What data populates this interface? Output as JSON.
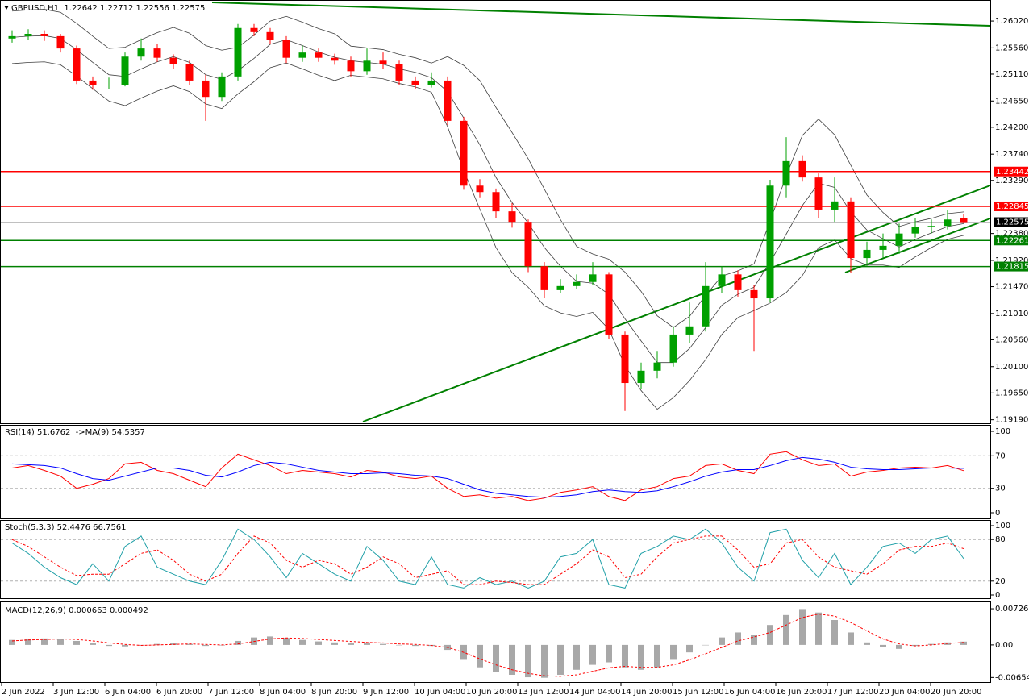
{
  "chart_data": [
    {
      "type": "candlestick",
      "title": "GBPUSD,H1  1.22642 1.22712 1.22556 1.22575",
      "up_color": "#00a000",
      "down_color": "#ff0000",
      "open": [
        1.2572,
        1.2576,
        1.258,
        1.2576,
        1.2555,
        1.25,
        1.2493,
        1.2493,
        1.2541,
        1.2555,
        1.2539,
        1.2528,
        1.25,
        1.2472,
        1.2507,
        1.259,
        1.2583,
        1.2569,
        1.2539,
        1.2548,
        1.2539,
        1.2534,
        1.2516,
        1.2534,
        1.2528,
        1.25,
        1.2493,
        1.25,
        1.2431,
        1.232,
        1.2309,
        1.2276,
        1.2258,
        1.2182,
        1.2141,
        1.2148,
        1.2155,
        1.2168,
        1.2065,
        1.1982,
        1.2003,
        1.2017,
        1.2065,
        1.2079,
        1.2148,
        1.2168,
        1.2141,
        1.2127,
        1.232,
        1.2362,
        1.2334,
        1.2279,
        1.2293,
        1.2196,
        1.221,
        1.2217,
        1.2238,
        1.2249,
        1.2251,
        1.22642
      ],
      "high": [
        1.2586,
        1.2588,
        1.2586,
        1.258,
        1.256,
        1.2507,
        1.2505,
        1.2548,
        1.2572,
        1.2562,
        1.2545,
        1.2534,
        1.251,
        1.2514,
        1.2597,
        1.2597,
        1.259,
        1.2576,
        1.256,
        1.2555,
        1.2546,
        1.2541,
        1.2555,
        1.2548,
        1.2534,
        1.2507,
        1.2514,
        1.2507,
        1.2438,
        1.2331,
        1.2315,
        1.229,
        1.2262,
        1.2189,
        1.216,
        1.2168,
        1.2189,
        1.2172,
        1.207,
        1.2017,
        1.2037,
        1.2079,
        1.212,
        1.2189,
        1.2182,
        1.2175,
        1.215,
        1.233,
        1.2403,
        1.2372,
        1.2341,
        1.2334,
        1.23,
        1.2224,
        1.2238,
        1.2255,
        1.2265,
        1.2262,
        1.2279,
        1.22712
      ],
      "low": [
        1.2565,
        1.257,
        1.2568,
        1.2548,
        1.2494,
        1.2484,
        1.2486,
        1.249,
        1.2534,
        1.2532,
        1.252,
        1.2493,
        1.2431,
        1.2465,
        1.25,
        1.2576,
        1.2562,
        1.253,
        1.2532,
        1.2532,
        1.2527,
        1.2507,
        1.251,
        1.252,
        1.2493,
        1.2486,
        1.2488,
        1.2424,
        1.2313,
        1.23,
        1.2265,
        1.2248,
        1.2172,
        1.2127,
        1.2136,
        1.2143,
        1.215,
        1.2058,
        1.1934,
        1.1972,
        1.199,
        1.201,
        1.205,
        1.207,
        1.2136,
        1.213,
        1.2037,
        1.212,
        1.23,
        1.2327,
        1.2265,
        1.2258,
        1.2171,
        1.2182,
        1.2196,
        1.2203,
        1.2231,
        1.2238,
        1.2245,
        1.22556
      ],
      "close": [
        1.2576,
        1.258,
        1.2576,
        1.2555,
        1.25,
        1.2493,
        1.2493,
        1.2541,
        1.2555,
        1.2539,
        1.2528,
        1.25,
        1.2472,
        1.2507,
        1.259,
        1.2583,
        1.2569,
        1.2539,
        1.2548,
        1.2539,
        1.2534,
        1.2516,
        1.2534,
        1.2528,
        1.25,
        1.2493,
        1.25,
        1.2431,
        1.232,
        1.2309,
        1.2276,
        1.2258,
        1.2182,
        1.2141,
        1.2148,
        1.2155,
        1.2168,
        1.2065,
        1.1982,
        1.2003,
        1.2017,
        1.2065,
        1.2079,
        1.2148,
        1.2168,
        1.2141,
        1.2127,
        1.232,
        1.2362,
        1.2334,
        1.2279,
        1.2293,
        1.2196,
        1.221,
        1.2217,
        1.2238,
        1.2249,
        1.2251,
        1.2262,
        1.22575
      ],
      "bands": {
        "color": "#404040",
        "upper": [
          1.2619,
          1.2621,
          1.2622,
          1.2617,
          1.2598,
          1.2576,
          1.2555,
          1.2557,
          1.257,
          1.2582,
          1.2591,
          1.2581,
          1.256,
          1.2552,
          1.2557,
          1.2578,
          1.2602,
          1.261,
          1.26,
          1.2589,
          1.258,
          1.2559,
          1.2556,
          1.2553,
          1.2545,
          1.2539,
          1.253,
          1.2541,
          1.2526,
          1.25,
          1.2454,
          1.2411,
          1.2366,
          1.2314,
          1.2262,
          1.2216,
          1.2203,
          1.2194,
          1.2172,
          1.2139,
          1.2097,
          1.2077,
          1.2096,
          1.2132,
          1.2165,
          1.2174,
          1.2186,
          1.2259,
          1.2337,
          1.2406,
          1.2434,
          1.2407,
          1.2355,
          1.2304,
          1.2274,
          1.225,
          1.2258,
          1.2264,
          1.2272,
          1.2275
        ],
        "middle": [
          1.2574,
          1.2576,
          1.2577,
          1.2572,
          1.2553,
          1.2531,
          1.251,
          1.2507,
          1.252,
          1.2532,
          1.2541,
          1.2531,
          1.251,
          1.2502,
          1.2517,
          1.2538,
          1.2562,
          1.257,
          1.256,
          1.2549,
          1.254,
          1.2534,
          1.2531,
          1.2528,
          1.252,
          1.2514,
          1.2505,
          1.2481,
          1.2436,
          1.239,
          1.2334,
          1.2291,
          1.2256,
          1.2214,
          1.2182,
          1.2156,
          1.2153,
          1.2134,
          1.2092,
          1.2054,
          1.2017,
          1.2017,
          1.2041,
          1.2077,
          1.2115,
          1.2134,
          1.2146,
          1.2189,
          1.2237,
          1.2286,
          1.2324,
          1.2317,
          1.2275,
          1.2244,
          1.2229,
          1.2215,
          1.2228,
          1.2239,
          1.225,
          1.2255
        ],
        "lower": [
          1.2529,
          1.2531,
          1.2532,
          1.2527,
          1.2508,
          1.2486,
          1.2465,
          1.2457,
          1.247,
          1.2482,
          1.2491,
          1.2481,
          1.246,
          1.2452,
          1.2477,
          1.2498,
          1.2522,
          1.253,
          1.252,
          1.2509,
          1.25,
          1.2509,
          1.2506,
          1.2503,
          1.2495,
          1.2489,
          1.248,
          1.2421,
          1.2346,
          1.228,
          1.2214,
          1.2171,
          1.2146,
          1.2114,
          1.2102,
          1.2096,
          1.2103,
          1.2074,
          1.2012,
          1.1969,
          1.1937,
          1.1957,
          1.1986,
          1.2022,
          1.2065,
          1.2094,
          1.2106,
          1.2119,
          1.2137,
          1.2166,
          1.2214,
          1.2227,
          1.2195,
          1.2184,
          1.2184,
          1.218,
          1.2198,
          1.2214,
          1.2228,
          1.2235
        ]
      },
      "ylim": [
        1.1913,
        1.2638
      ],
      "yticks": [
        {
          "value": 1.2602,
          "label": "1.26020"
        },
        {
          "value": 1.2556,
          "label": "1.25560"
        },
        {
          "value": 1.2511,
          "label": "1.25110"
        },
        {
          "value": 1.2465,
          "label": "1.24650"
        },
        {
          "value": 1.242,
          "label": "1.24200"
        },
        {
          "value": 1.2374,
          "label": "1.23740"
        },
        {
          "value": 1.2329,
          "label": "1.23290"
        },
        {
          "value": 1.2238,
          "label": "1.22380"
        },
        {
          "value": 1.2192,
          "label": "1.21920"
        },
        {
          "value": 1.2147,
          "label": "1.21470"
        },
        {
          "value": 1.2101,
          "label": "1.21010"
        },
        {
          "value": 1.2056,
          "label": "1.20560"
        },
        {
          "value": 1.201,
          "label": "1.20100"
        },
        {
          "value": 1.1965,
          "label": "1.19650"
        },
        {
          "value": 1.1919,
          "label": "1.19190"
        }
      ],
      "levels": [
        {
          "value": 1.23442,
          "color": "#ff0000"
        },
        {
          "value": 1.22845,
          "color": "#ff0000"
        },
        {
          "value": 1.22261,
          "color": "#008000"
        },
        {
          "value": 1.21815,
          "color": "#008000"
        }
      ],
      "current_price": {
        "value": 1.22575,
        "color": "#000000"
      },
      "time_labels": [
        "2 Jun 2022",
        "3 Jun 12:00",
        "6 Jun 04:00",
        "6 Jun 20:00",
        "7 Jun 12:00",
        "8 Jun 04:00",
        "8 Jun 20:00",
        "9 Jun 12:00",
        "10 Jun 04:00",
        "10 Jun 20:00",
        "13 Jun 12:00",
        "14 Jun 04:00",
        "14 Jun 20:00",
        "15 Jun 12:00",
        "16 Jun 04:00",
        "16 Jun 20:00",
        "17 Jun 12:00",
        "20 Jun 04:00",
        "20 Jun 20:00"
      ]
    },
    {
      "type": "line",
      "title": "RSI(14) 51.6762  ->MA(9) 54.5357",
      "ylim": [
        0,
        100
      ],
      "yticks": [
        100,
        70,
        30,
        0
      ],
      "levels": [
        70,
        30
      ],
      "series": [
        {
          "color": "#ff0000",
          "style": "solid",
          "values": [
            55,
            58,
            52,
            45,
            30,
            35,
            42,
            60,
            62,
            52,
            48,
            40,
            32,
            55,
            72,
            65,
            58,
            48,
            52,
            50,
            48,
            44,
            52,
            50,
            44,
            42,
            45,
            30,
            20,
            22,
            18,
            20,
            15,
            18,
            25,
            28,
            32,
            20,
            15,
            28,
            32,
            42,
            45,
            58,
            60,
            52,
            48,
            72,
            75,
            65,
            58,
            60,
            45,
            50,
            52,
            55,
            56,
            55,
            58,
            51.6762
          ]
        },
        {
          "color": "#0000ff",
          "style": "solid",
          "values": [
            60,
            59,
            58,
            55,
            48,
            42,
            40,
            45,
            50,
            55,
            55,
            52,
            46,
            44,
            50,
            58,
            62,
            60,
            56,
            52,
            50,
            48,
            48,
            49,
            48,
            46,
            45,
            42,
            35,
            28,
            24,
            22,
            20,
            19,
            20,
            22,
            26,
            28,
            26,
            25,
            27,
            32,
            38,
            45,
            50,
            53,
            53,
            58,
            64,
            68,
            66,
            62,
            56,
            54,
            53,
            53,
            54,
            55,
            55,
            54.5357
          ]
        }
      ]
    },
    {
      "type": "line",
      "title": "Stoch(5,3,3) 52.4476 66.7561",
      "ylim": [
        0,
        100
      ],
      "yticks": [
        100,
        80,
        20,
        0
      ],
      "levels": [
        80,
        20
      ],
      "series": [
        {
          "color": "#20a0a8",
          "style": "solid",
          "values": [
            75,
            60,
            40,
            25,
            15,
            45,
            20,
            70,
            85,
            40,
            30,
            20,
            15,
            50,
            95,
            80,
            55,
            25,
            60,
            45,
            30,
            20,
            70,
            50,
            20,
            15,
            55,
            15,
            10,
            25,
            15,
            20,
            10,
            20,
            55,
            60,
            80,
            15,
            10,
            60,
            70,
            85,
            80,
            95,
            75,
            40,
            20,
            90,
            95,
            50,
            25,
            60,
            15,
            40,
            70,
            75,
            60,
            80,
            85,
            52.4476
          ]
        },
        {
          "color": "#ff0000",
          "style": "dashed",
          "values": [
            80,
            70,
            55,
            40,
            28,
            30,
            30,
            45,
            60,
            65,
            50,
            30,
            20,
            30,
            60,
            85,
            75,
            50,
            40,
            50,
            45,
            30,
            40,
            55,
            45,
            25,
            30,
            35,
            15,
            15,
            20,
            18,
            15,
            15,
            30,
            45,
            65,
            55,
            25,
            30,
            55,
            75,
            80,
            85,
            85,
            65,
            40,
            45,
            75,
            80,
            55,
            40,
            35,
            30,
            45,
            65,
            70,
            70,
            75,
            66.7561
          ]
        }
      ]
    },
    {
      "type": "line",
      "title": "MACD(12,26,9) 0.000663 0.000492",
      "ylim": [
        -0.0073,
        0.0084
      ],
      "yticks": [
        0.00726,
        {
          "value": 0,
          "label": "0.00"
        },
        -0.006545
      ],
      "series": [
        {
          "color": "#a8a8a8",
          "style": "bars",
          "values": [
            0.001,
            0.0012,
            0.0013,
            0.0012,
            0.0008,
            0.0003,
            -0.0002,
            -0.0003,
            -0.0001,
            0.0002,
            0.0003,
            0.0002,
            -0.0002,
            -0.0001,
            0.0008,
            0.0015,
            0.0017,
            0.0014,
            0.001,
            0.0007,
            0.0005,
            0.0003,
            0.0003,
            0.0002,
            0.0,
            -0.0002,
            -0.0002,
            -0.001,
            -0.003,
            -0.0045,
            -0.0055,
            -0.006,
            -0.0065,
            -0.0066,
            -0.006,
            -0.005,
            -0.004,
            -0.0035,
            -0.0045,
            -0.005,
            -0.0045,
            -0.003,
            -0.0015,
            0.0,
            0.0015,
            0.0025,
            0.002,
            0.004,
            0.006,
            0.0072,
            0.0065,
            0.005,
            0.0025,
            0.0005,
            -0.0005,
            -0.0008,
            -0.0002,
            0.0002,
            0.0005,
            0.000663
          ]
        },
        {
          "color": "#ff0000",
          "style": "dashed",
          "values": [
            0.0008,
            0.001,
            0.0011,
            0.0012,
            0.0011,
            0.0008,
            0.0004,
            0.0001,
            -0.0001,
            0.0,
            0.0001,
            0.0002,
            0.0001,
            0.0,
            0.0002,
            0.0007,
            0.0012,
            0.0014,
            0.0013,
            0.0011,
            0.0009,
            0.0007,
            0.0005,
            0.0004,
            0.0002,
            0.0001,
            -0.0001,
            -0.0005,
            -0.0015,
            -0.0028,
            -0.004,
            -0.005,
            -0.0057,
            -0.0062,
            -0.0063,
            -0.006,
            -0.0053,
            -0.0046,
            -0.0043,
            -0.0045,
            -0.0045,
            -0.004,
            -0.003,
            -0.0018,
            -0.0005,
            0.0008,
            0.0016,
            0.0025,
            0.004,
            0.0055,
            0.0062,
            0.0058,
            0.0045,
            0.0028,
            0.0012,
            0.0002,
            -0.0002,
            0.0,
            0.0003,
            0.000492
          ]
        }
      ]
    }
  ]
}
